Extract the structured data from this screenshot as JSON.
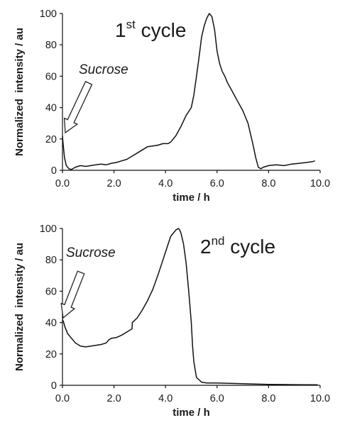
{
  "chart_data": [
    {
      "type": "line",
      "panel_label": {
        "ordinal": "1",
        "superscript": "st",
        "text": "cycle"
      },
      "annotation": "Sucrose",
      "xlabel": "time / h",
      "ylabel": "Normalized  intensity / au",
      "xlim": [
        0,
        10
      ],
      "ylim": [
        0,
        100
      ],
      "xticks": [
        "0.0",
        "2.0",
        "4.0",
        "6.0",
        "8.0",
        "10.0"
      ],
      "yticks": [
        "0",
        "20",
        "40",
        "60",
        "80",
        "100"
      ],
      "series": [
        {
          "x": [
            0.0,
            0.03,
            0.08,
            0.15,
            0.25,
            0.35,
            0.5,
            0.7,
            0.9,
            1.1,
            1.3,
            1.5,
            1.7,
            1.9,
            2.1,
            2.3,
            2.5,
            2.7,
            2.9,
            3.1,
            3.3,
            3.5,
            3.7,
            3.9,
            4.1,
            4.2,
            4.4,
            4.6,
            4.8,
            5.0,
            5.1,
            5.2,
            5.3,
            5.4,
            5.5,
            5.6,
            5.7,
            5.8,
            5.9,
            6.0,
            6.1,
            6.2,
            6.3,
            6.4,
            6.6,
            6.8,
            7.0,
            7.2,
            7.4,
            7.5,
            7.6,
            7.7,
            7.8,
            8.0,
            8.3,
            8.6,
            8.9,
            9.2,
            9.5,
            9.7,
            9.8
          ],
          "y": [
            22,
            16,
            8,
            3,
            1,
            0.5,
            2,
            3,
            2.5,
            3,
            3.5,
            4,
            3.5,
            4.5,
            5,
            6,
            7,
            9,
            11,
            13,
            15,
            15.5,
            16,
            17,
            17,
            18,
            22,
            28,
            35,
            40,
            48,
            60,
            72,
            85,
            92,
            97,
            100,
            98,
            90,
            76,
            68,
            63,
            60,
            56,
            50,
            44,
            38,
            30,
            16,
            8,
            2,
            1,
            2,
            3,
            3.5,
            3,
            4,
            4.5,
            5,
            5.5,
            6
          ]
        }
      ]
    },
    {
      "type": "line",
      "panel_label": {
        "ordinal": "2",
        "superscript": "nd",
        "text": "cycle"
      },
      "annotation": "Sucrose",
      "xlabel": "time / h",
      "ylabel": "Normalized  intensity / au",
      "xlim": [
        0,
        10
      ],
      "ylim": [
        0,
        100
      ],
      "xticks": [
        "0.0",
        "2.0",
        "4.0",
        "6.0",
        "8.0",
        "10.0"
      ],
      "yticks": [
        "0",
        "20",
        "40",
        "60",
        "80",
        "100"
      ],
      "series": [
        {
          "x": [
            0.0,
            0.05,
            0.1,
            0.2,
            0.35,
            0.5,
            0.7,
            0.9,
            1.1,
            1.3,
            1.5,
            1.7,
            1.8,
            1.9,
            2.1,
            2.3,
            2.5,
            2.7,
            2.71,
            2.9,
            3.1,
            3.3,
            3.5,
            3.7,
            3.9,
            4.1,
            4.2,
            4.3,
            4.4,
            4.5,
            4.55,
            4.6,
            4.7,
            4.8,
            4.9,
            5.0,
            5.05,
            5.1,
            5.2,
            5.4,
            5.6,
            5.8,
            6.0,
            6.5,
            7.0,
            7.5,
            8.0,
            8.5,
            9.0,
            9.5,
            9.9
          ],
          "y": [
            42,
            40,
            37,
            33,
            30,
            27,
            25,
            24.5,
            25,
            25.5,
            26,
            27,
            29,
            30,
            30.5,
            32,
            34,
            36,
            40,
            43,
            48,
            54,
            61,
            70,
            80,
            90,
            95,
            97,
            99,
            100,
            99,
            97,
            90,
            78,
            60,
            40,
            25,
            15,
            5,
            2,
            1.5,
            1.5,
            1.5,
            1.2,
            1,
            0.8,
            0.6,
            0.5,
            0.4,
            0.3,
            0.3
          ]
        }
      ]
    }
  ]
}
